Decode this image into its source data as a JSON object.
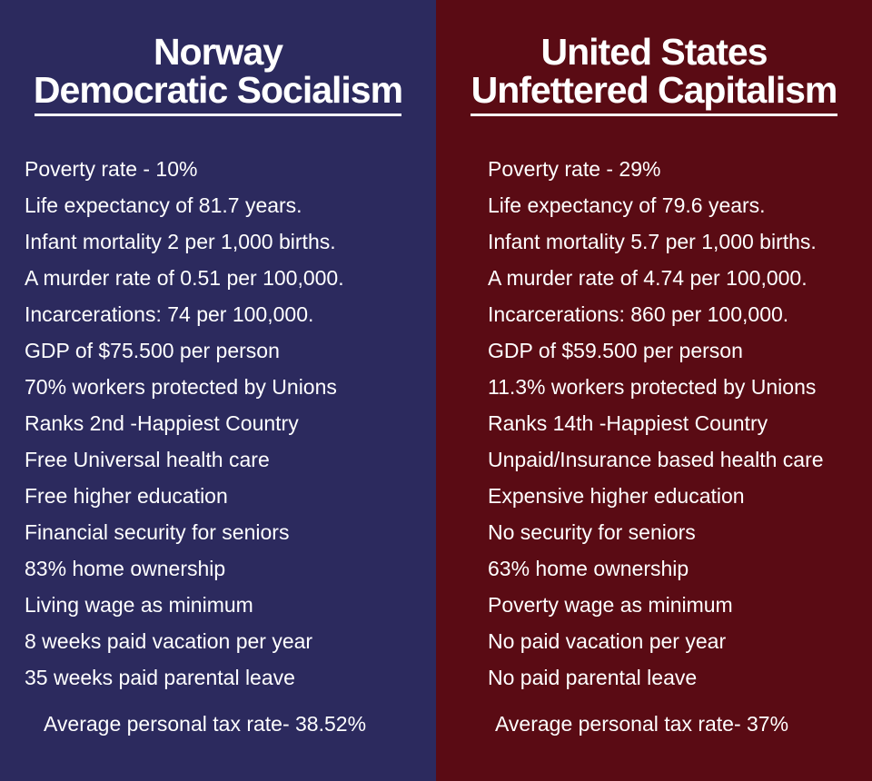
{
  "left": {
    "title_line1": "Norway",
    "title_line2": "Democratic Socialism",
    "items": [
      "Poverty rate - 10%",
      "Life expectancy of 81.7 years.",
      "Infant mortality 2 per 1,000 births.",
      "A murder rate of 0.51 per 100,000.",
      "Incarcerations: 74 per 100,000.",
      "GDP of $75.500 per person",
      "70% workers protected by Unions",
      "Ranks 2nd -Happiest Country",
      "Free Universal health care",
      "Free higher education",
      "Financial security for seniors",
      "83% home ownership",
      "Living wage as minimum",
      "8 weeks paid vacation per year",
      "35 weeks paid parental leave"
    ],
    "tax": "Average personal tax rate- 38.52%"
  },
  "right": {
    "title_line1": "United States",
    "title_line2": "Unfettered Capitalism",
    "items": [
      "Poverty rate - 29%",
      "Life expectancy of 79.6 years.",
      "Infant mortality 5.7 per 1,000 births.",
      "A murder rate of 4.74 per 100,000.",
      "Incarcerations: 860 per 100,000.",
      "GDP of $59.500 per person",
      "11.3% workers protected by Unions",
      "Ranks 14th -Happiest Country",
      "Unpaid/Insurance based health care",
      "Expensive higher education",
      "No security for seniors",
      "63% home ownership",
      "Poverty wage as minimum",
      "No paid vacation per year",
      "No paid parental leave"
    ],
    "tax": "Average personal tax rate- 37%"
  },
  "colors": {
    "left_bg": "#2c2a5e",
    "right_bg": "#5a0b14",
    "text": "#ffffff"
  }
}
